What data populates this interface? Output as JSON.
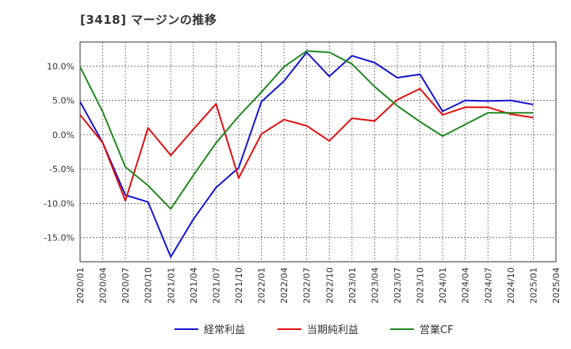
{
  "title": "[3418]  マージンの推移",
  "chart_data": {
    "type": "line",
    "title": "[3418]  マージンの推移",
    "x": [
      "2020/01",
      "2020/04",
      "2020/07",
      "2020/10",
      "2021/01",
      "2021/04",
      "2021/07",
      "2021/10",
      "2022/01",
      "2022/04",
      "2022/07",
      "2022/10",
      "2023/01",
      "2023/04",
      "2023/07",
      "2023/10",
      "2024/01",
      "2024/04",
      "2024/07",
      "2024/10",
      "2025/01",
      "2025/04"
    ],
    "y_ticks": [
      "10.0%",
      "5.0%",
      "0.0%",
      "-5.0%",
      "-10.0%",
      "-15.0%"
    ],
    "y_tick_values": [
      10,
      5,
      0,
      -5,
      -10,
      -15
    ],
    "ylim": [
      -18.5,
      13.5
    ],
    "grid": true,
    "legend_position": "bottom",
    "series": [
      {
        "name": "経常利益",
        "color": "#1414d2",
        "values": [
          4.8,
          -1.2,
          -8.8,
          -9.8,
          -17.8,
          -12.3,
          -7.7,
          -4.8,
          4.8,
          7.8,
          12.0,
          8.5,
          11.5,
          10.5,
          8.3,
          8.8,
          3.4,
          5.0,
          4.9,
          5.0,
          4.4,
          null
        ]
      },
      {
        "name": "当期純利益",
        "color": "#e01010",
        "values": [
          2.9,
          -1.2,
          -9.6,
          1.0,
          -3.0,
          0.8,
          4.5,
          -6.3,
          0.1,
          2.2,
          1.3,
          -0.9,
          2.4,
          2.0,
          5.1,
          6.7,
          2.9,
          4.0,
          4.0,
          3.0,
          2.5,
          null
        ]
      },
      {
        "name": "営業CF",
        "color": "#208820",
        "values": [
          9.9,
          3.3,
          -4.7,
          -7.4,
          -10.8,
          -5.9,
          -1.2,
          2.7,
          6.2,
          9.9,
          12.2,
          12.0,
          10.3,
          7.0,
          4.2,
          1.9,
          -0.2,
          1.5,
          3.2,
          3.2,
          3.2,
          null
        ]
      }
    ]
  }
}
